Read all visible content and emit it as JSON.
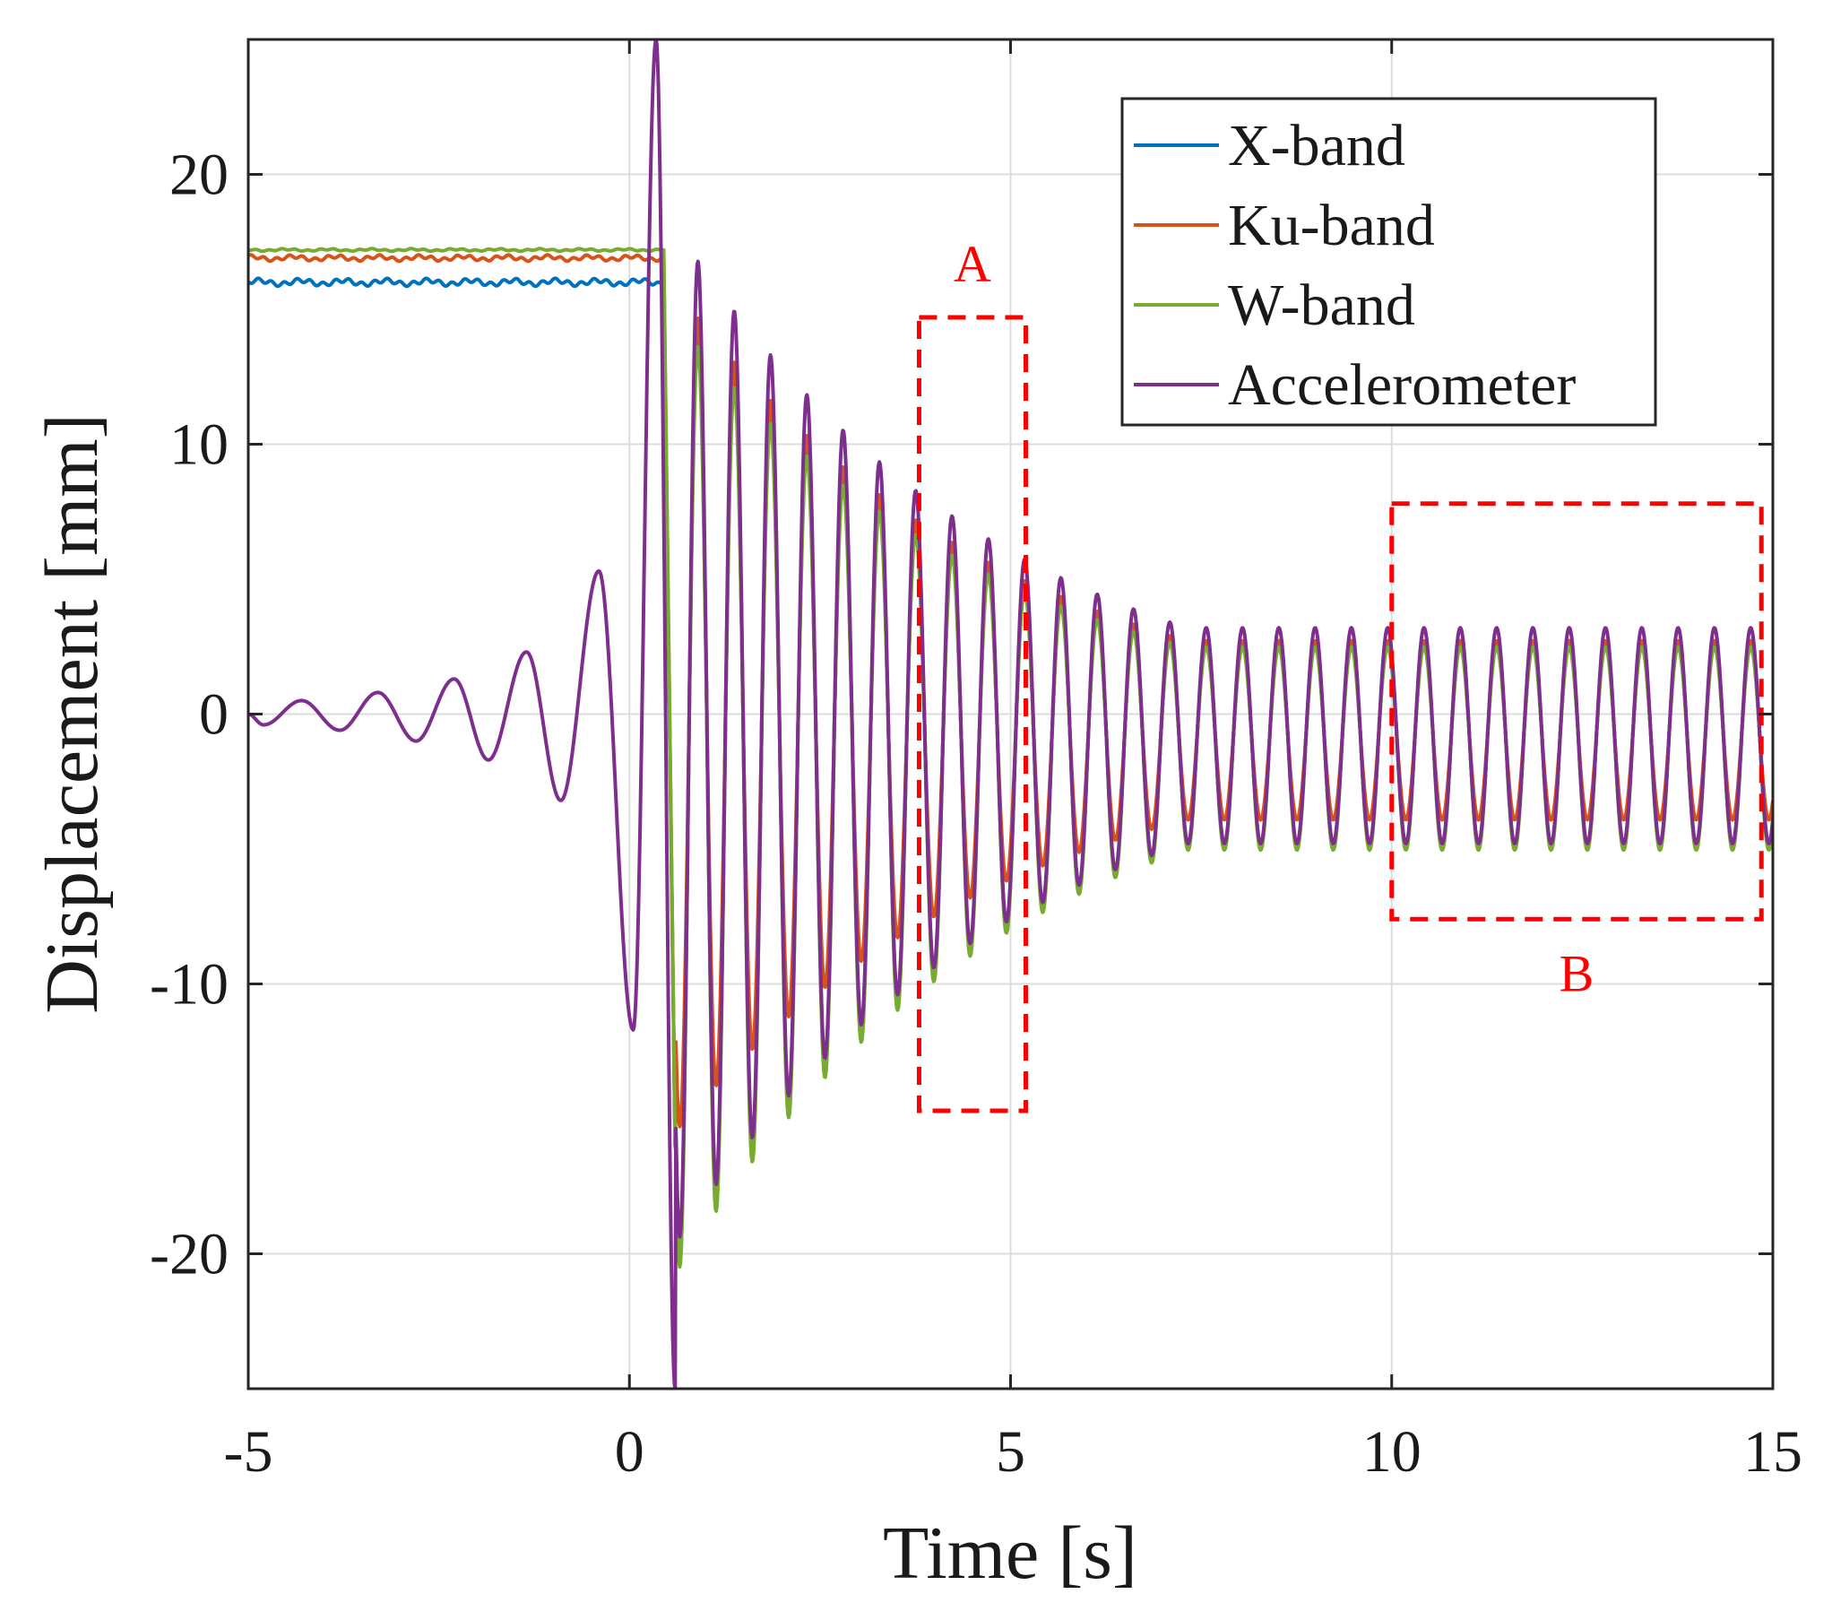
{
  "chart_data": {
    "type": "line",
    "title": "",
    "xlabel": "Time [s]",
    "ylabel": "Displacement [mm]",
    "xlim": [
      -5,
      15
    ],
    "ylim": [
      -25,
      25
    ],
    "grid": true,
    "legend_position": "top-right",
    "xticks": [
      {
        "value": -5,
        "label": "-5"
      },
      {
        "value": 0,
        "label": "0"
      },
      {
        "value": 5,
        "label": "5"
      },
      {
        "value": 10,
        "label": "10"
      },
      {
        "value": 15,
        "label": "15"
      }
    ],
    "yticks": [
      {
        "value": -20,
        "label": "-20"
      },
      {
        "value": -10,
        "label": "-10"
      },
      {
        "value": 0,
        "label": "0"
      },
      {
        "value": 10,
        "label": "10"
      },
      {
        "value": 20,
        "label": "20"
      }
    ],
    "oscillation": {
      "start_time": 0.45,
      "frequency_hz": 2.1,
      "amplitude_at_start": 19.5,
      "decay_rate": 0.105,
      "amplitude_floor": 4.0,
      "offset": -0.8
    },
    "series": [
      {
        "name": "X-band",
        "color": "#0072BD",
        "pre_level": 16.0,
        "peak_scale": 0.86,
        "trough_scale": 1.02,
        "noise": 0.15
      },
      {
        "name": "Ku-band",
        "color": "#D95319",
        "pre_level": 16.9,
        "peak_scale": 0.88,
        "trough_scale": 0.78,
        "noise": 0.12
      },
      {
        "name": "W-band",
        "color": "#77AC30",
        "pre_level": 17.2,
        "peak_scale": 0.82,
        "trough_scale": 1.06,
        "noise": 0.05
      },
      {
        "name": "Accelerometer",
        "color": "#7E2F8E",
        "pre_level": null,
        "peak_scale": 1.0,
        "trough_scale": 1.0,
        "noise": 0.0
      }
    ],
    "accelerometer_pre_oscillation": [
      {
        "t": -5.0,
        "y": 0.0
      },
      {
        "t": -4.8,
        "y": -0.4
      },
      {
        "t": -4.3,
        "y": 0.5
      },
      {
        "t": -3.8,
        "y": -0.6
      },
      {
        "t": -3.3,
        "y": 0.8
      },
      {
        "t": -2.8,
        "y": -1.0
      },
      {
        "t": -2.3,
        "y": 1.3
      },
      {
        "t": -1.85,
        "y": -1.7
      },
      {
        "t": -1.35,
        "y": 2.3
      },
      {
        "t": -0.9,
        "y": -3.2
      },
      {
        "t": -0.4,
        "y": 5.3
      },
      {
        "t": 0.05,
        "y": -11.7
      },
      {
        "t": 0.35,
        "y": 25.0
      },
      {
        "t": 0.6,
        "y": -25.0
      }
    ],
    "annotations": [
      {
        "label": "A",
        "x_range": [
          3.8,
          5.2
        ],
        "y_range": [
          -14.7,
          14.7
        ]
      },
      {
        "label": "B",
        "x_range": [
          10.0,
          14.85
        ],
        "y_range": [
          -7.6,
          7.8
        ]
      }
    ]
  }
}
